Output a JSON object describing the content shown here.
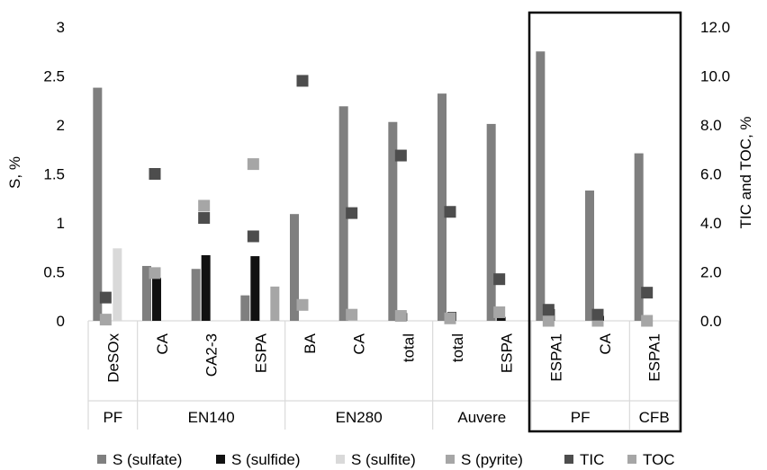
{
  "chart_data": {
    "type": "bar",
    "ylabel": "S, %",
    "y2label": "TIC and TOC, %",
    "ylim": [
      0,
      3
    ],
    "y2lim": [
      0,
      12
    ],
    "yticks": [
      "0",
      "0.5",
      "1",
      "1.5",
      "2",
      "2.5",
      "3"
    ],
    "y2ticks": [
      "0.0",
      "2.0",
      "4.0",
      "6.0",
      "8.0",
      "10.0",
      "12.0"
    ],
    "categories": [
      "DeSOx",
      "CA",
      "CA2-3",
      "ESPA",
      "BA",
      "CA",
      "total",
      "total",
      "ESPA",
      "ESPA1",
      "CA",
      "ESPA1"
    ],
    "groups": [
      {
        "label": "PF",
        "count": 1
      },
      {
        "label": "EN140",
        "count": 3
      },
      {
        "label": "EN280",
        "count": 3
      },
      {
        "label": "Auvere",
        "count": 2
      },
      {
        "label": "PF",
        "count": 2
      },
      {
        "label": "CFB",
        "count": 1
      }
    ],
    "highlight": {
      "from": 9,
      "to": 11
    },
    "series": [
      {
        "name": "S (sulfate)",
        "axis": "left",
        "kind": "bar",
        "color": "#7f7f7f",
        "values": [
          2.38,
          0.56,
          0.53,
          0.26,
          1.09,
          2.19,
          2.03,
          2.32,
          2.01,
          2.75,
          1.33,
          1.71
        ]
      },
      {
        "name": "S (sulfide)",
        "axis": "left",
        "kind": "bar",
        "color": "#111111",
        "values": [
          0,
          0.44,
          0.67,
          0.66,
          0,
          0,
          0.08,
          0.09,
          0.04,
          0.12,
          0.05,
          0
        ]
      },
      {
        "name": "S (sulfite)",
        "axis": "left",
        "kind": "bar",
        "color": "#d9d9d9",
        "values": [
          0.74,
          0,
          0,
          0,
          0,
          0,
          0,
          0,
          0,
          0,
          0,
          0
        ]
      },
      {
        "name": "S (pyrite)",
        "axis": "left",
        "kind": "bar",
        "color": "#a6a6a6",
        "values": [
          0,
          0,
          0,
          0.35,
          0,
          0,
          0,
          0,
          0,
          0,
          0,
          0
        ]
      },
      {
        "name": "TIC",
        "axis": "right",
        "kind": "marker",
        "color": "#4d4d4d",
        "values": [
          0.95,
          6.0,
          4.2,
          3.45,
          9.8,
          4.4,
          6.75,
          4.45,
          1.7,
          0.45,
          0.25,
          1.15
        ]
      },
      {
        "name": "TOC",
        "axis": "right",
        "kind": "marker",
        "color": "#a6a6a6",
        "values": [
          0.05,
          1.95,
          4.7,
          6.4,
          0.65,
          0.25,
          0.2,
          0.1,
          0.35,
          0.0,
          0.0,
          0.0
        ]
      }
    ]
  }
}
